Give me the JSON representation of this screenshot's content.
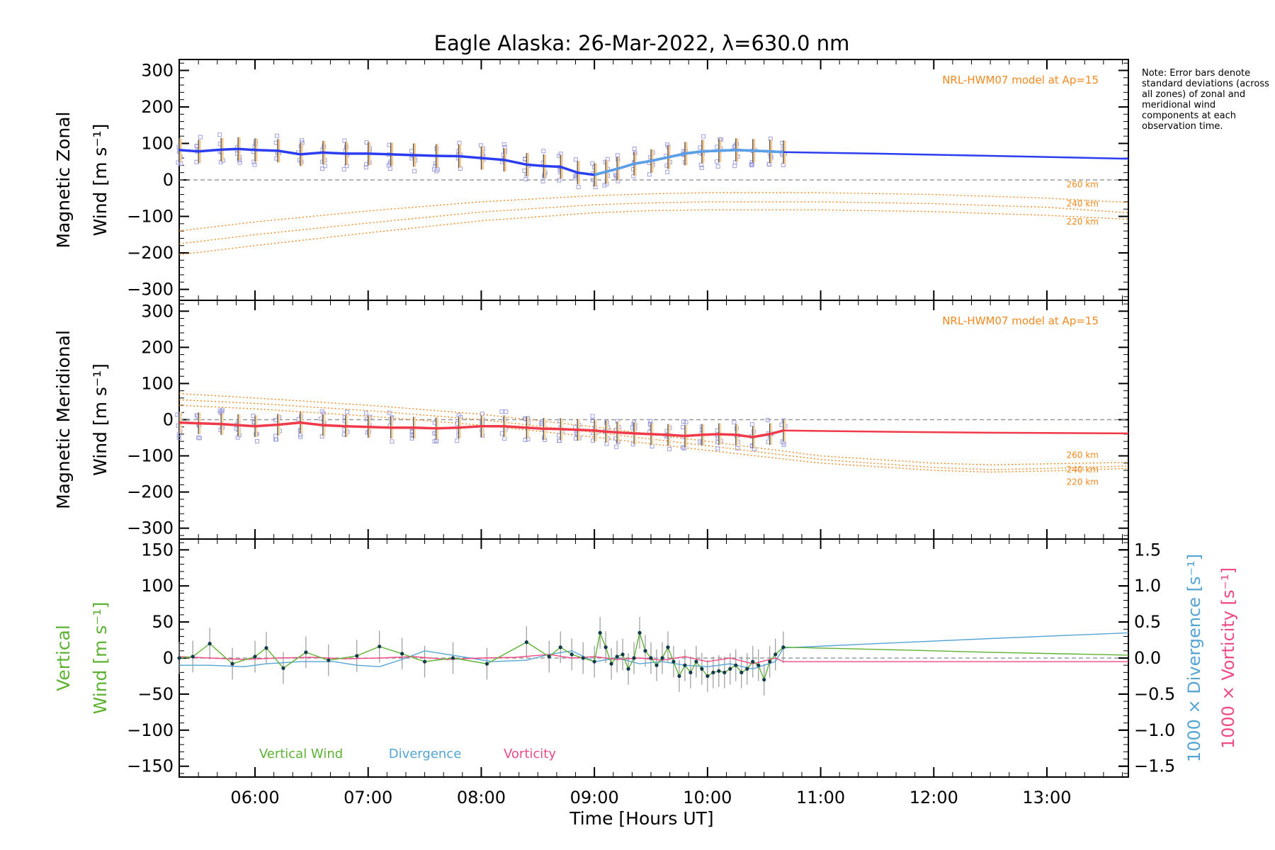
{
  "chart_data": {
    "title": "Eagle Alaska: 26-Mar-2022, λ=630.0 nm",
    "note": "Note: Error bars denote standard deviations (across all zones) of zonal and meridional wind components at each observation time.",
    "xlabel": "Time [Hours UT]",
    "x_ticks": [
      "06:00",
      "07:00",
      "08:00",
      "09:00",
      "10:00",
      "11:00",
      "12:00",
      "13:00"
    ],
    "xlim_hours": [
      5.33,
      13.72
    ],
    "colors": {
      "zonal": "#2b3df0",
      "zonal_recent": "#5aa0e6",
      "meridional": "#f03a4a",
      "model": "#f5881f",
      "vertical": "#5db233",
      "divergence": "#55a4d4",
      "vorticity": "#ef4a86",
      "zero_line": "#888888",
      "error_bar": "#555555"
    },
    "panels": [
      {
        "id": "zonal",
        "ylabel_line1": "Magnetic Zonal",
        "ylabel_line2": "Wind [m s⁻¹]",
        "ylim": [
          -330,
          330
        ],
        "y_ticks": [
          300,
          200,
          100,
          0,
          -100,
          -200,
          -300
        ],
        "model_label": "NRL-HWM07 model at Ap=15",
        "model_heights": [
          "260 km",
          "240 km",
          "220 km"
        ],
        "model_curves": [
          {
            "x": [
              5.33,
              6,
              7,
              8,
              9,
              9.5,
              10,
              11,
              12,
              13,
              13.72
            ],
            "y": [
              -140,
              -115,
              -85,
              -60,
              -43,
              -38,
              -35,
              -35,
              -40,
              -50,
              -62
            ]
          },
          {
            "x": [
              5.33,
              6,
              7,
              8,
              9,
              9.5,
              10,
              11,
              12,
              13,
              13.72
            ],
            "y": [
              -175,
              -150,
              -118,
              -88,
              -68,
              -63,
              -60,
              -60,
              -65,
              -75,
              -90
            ]
          },
          {
            "x": [
              5.33,
              6,
              7,
              8,
              9,
              9.5,
              10,
              11,
              12,
              13,
              13.72
            ],
            "y": [
              -205,
              -180,
              -145,
              -112,
              -90,
              -84,
              -82,
              -82,
              -87,
              -97,
              -108
            ]
          }
        ],
        "series": {
          "x": [
            5.33,
            5.5,
            5.7,
            5.85,
            6,
            6.2,
            6.4,
            6.6,
            6.8,
            7,
            7.2,
            7.4,
            7.6,
            7.8,
            8.0,
            8.2,
            8.4,
            8.55,
            8.7,
            8.85,
            9.0,
            9.1,
            9.2,
            9.35,
            9.5,
            9.65,
            9.8,
            9.95,
            10.1,
            10.25,
            10.4,
            10.55,
            10.67
          ],
          "y": [
            82,
            78,
            83,
            85,
            82,
            80,
            70,
            75,
            72,
            72,
            70,
            68,
            66,
            65,
            60,
            55,
            42,
            38,
            36,
            20,
            14,
            22,
            30,
            44,
            52,
            62,
            72,
            78,
            80,
            82,
            80,
            78,
            76
          ]
        },
        "extension": {
          "x": [
            10.67,
            11.5,
            12.5,
            13.72
          ],
          "y": [
            76,
            72,
            66,
            58
          ]
        },
        "errorbar_sd": 32
      },
      {
        "id": "meridional",
        "ylabel_line1": "Magnetic Meridional",
        "ylabel_line2": "Wind [m s⁻¹]",
        "ylim": [
          -330,
          330
        ],
        "y_ticks": [
          300,
          200,
          100,
          0,
          -100,
          -200,
          -300
        ],
        "model_label": "NRL-HWM07 model at Ap=15",
        "model_heights": [
          "260 km",
          "240 km",
          "220 km"
        ],
        "model_curves": [
          {
            "x": [
              5.33,
              6,
              7,
              8,
              9,
              10,
              11,
              12,
              12.5,
              13,
              13.72
            ],
            "y": [
              72,
              60,
              40,
              15,
              -20,
              -60,
              -100,
              -120,
              -125,
              -122,
              -118
            ]
          },
          {
            "x": [
              5.33,
              6,
              7,
              8,
              9,
              10,
              11,
              12,
              12.5,
              13,
              13.72
            ],
            "y": [
              55,
              45,
              25,
              0,
              -35,
              -72,
              -110,
              -132,
              -138,
              -135,
              -128
            ]
          },
          {
            "x": [
              5.33,
              6,
              7,
              8,
              9,
              10,
              11,
              12,
              12.5,
              13,
              13.72
            ],
            "y": [
              40,
              30,
              10,
              -15,
              -48,
              -85,
              -120,
              -140,
              -145,
              -142,
              -135
            ]
          }
        ],
        "series": {
          "x": [
            5.33,
            5.5,
            5.7,
            5.85,
            6,
            6.2,
            6.4,
            6.6,
            6.8,
            7,
            7.2,
            7.4,
            7.6,
            7.8,
            8.0,
            8.2,
            8.4,
            8.55,
            8.7,
            8.85,
            9.0,
            9.1,
            9.2,
            9.35,
            9.5,
            9.65,
            9.8,
            9.95,
            10.1,
            10.25,
            10.4,
            10.55,
            10.67
          ],
          "y": [
            -8,
            -10,
            -12,
            -15,
            -18,
            -14,
            -8,
            -15,
            -18,
            -20,
            -22,
            -22,
            -24,
            -22,
            -18,
            -18,
            -22,
            -25,
            -26,
            -28,
            -30,
            -33,
            -35,
            -38,
            -40,
            -42,
            -45,
            -42,
            -40,
            -42,
            -48,
            -40,
            -30
          ]
        },
        "extension": {
          "x": [
            10.67,
            11.5,
            12.5,
            13.72
          ],
          "y": [
            -30,
            -33,
            -36,
            -38
          ]
        },
        "errorbar_sd": 30
      },
      {
        "id": "vertical",
        "ylabel_line1": "Vertical",
        "ylabel_line2": "Wind [m s⁻¹]",
        "ylim": [
          -165,
          165
        ],
        "y_ticks": [
          150,
          100,
          50,
          0,
          -50,
          -100,
          -150
        ],
        "y2_ticks": [
          1.5,
          1.0,
          0.5,
          0.0,
          -0.5,
          -1.0,
          -1.5
        ],
        "y2_label_divergence": "1000 × Divergence [s⁻¹]",
        "y2_label_vorticity": "1000 × Vorticity [s⁻¹]",
        "legend": [
          "Vertical Wind",
          "Divergence",
          "Vorticity"
        ],
        "vertical_wind": {
          "x": [
            5.33,
            5.45,
            5.6,
            5.8,
            6.0,
            6.1,
            6.25,
            6.45,
            6.65,
            6.9,
            7.1,
            7.3,
            7.5,
            7.75,
            8.05,
            8.4,
            8.6,
            8.7,
            8.8,
            8.9,
            9.0,
            9.05,
            9.1,
            9.15,
            9.2,
            9.25,
            9.3,
            9.35,
            9.4,
            9.45,
            9.5,
            9.55,
            9.6,
            9.65,
            9.7,
            9.75,
            9.8,
            9.85,
            9.9,
            9.95,
            10.0,
            10.05,
            10.1,
            10.15,
            10.2,
            10.25,
            10.3,
            10.35,
            10.4,
            10.45,
            10.5,
            10.55,
            10.6,
            10.67
          ],
          "y": [
            0,
            2,
            20,
            -8,
            2,
            14,
            -14,
            8,
            -3,
            3,
            16,
            6,
            -5,
            0,
            -8,
            22,
            2,
            15,
            5,
            0,
            -5,
            35,
            15,
            -8,
            2,
            5,
            -15,
            0,
            35,
            10,
            0,
            -10,
            0,
            15,
            -5,
            -25,
            -10,
            -20,
            -5,
            -15,
            -25,
            -20,
            -18,
            -20,
            -15,
            -10,
            -20,
            -15,
            -5,
            -10,
            -30,
            -5,
            5,
            15
          ]
        },
        "vertical_extension": {
          "x": [
            10.67,
            11.5,
            12.5,
            13.72
          ],
          "y": [
            15,
            12,
            8,
            4
          ]
        },
        "divergence": {
          "x": [
            5.33,
            5.6,
            5.9,
            6.1,
            6.4,
            6.7,
            6.9,
            7.1,
            7.3,
            7.5,
            7.7,
            7.9,
            8.1,
            8.4,
            8.6,
            8.8,
            9.0,
            9.2,
            9.4,
            9.6,
            9.8,
            10.0,
            10.2,
            10.4,
            10.6,
            10.67
          ],
          "y": [
            -0.1,
            -0.1,
            -0.12,
            -0.08,
            -0.05,
            -0.05,
            -0.1,
            -0.12,
            -0.02,
            0.1,
            0.05,
            0.0,
            -0.05,
            -0.03,
            0.05,
            0.1,
            -0.05,
            0.0,
            -0.08,
            -0.05,
            -0.1,
            -0.12,
            -0.08,
            -0.15,
            -0.05,
            0.14
          ]
        },
        "divergence_extension": {
          "x": [
            10.67,
            11.5,
            12.5,
            13.72
          ],
          "y": [
            0.14,
            0.2,
            0.27,
            0.35
          ]
        },
        "vorticity": {
          "x": [
            5.33,
            5.6,
            5.9,
            6.2,
            6.5,
            6.8,
            7.1,
            7.4,
            7.7,
            8.0,
            8.3,
            8.6,
            8.8,
            9.0,
            9.2,
            9.4,
            9.6,
            9.8,
            10.0,
            10.2,
            10.4,
            10.6,
            10.67
          ],
          "y": [
            0.02,
            0.0,
            -0.02,
            0.0,
            0.01,
            -0.01,
            0.0,
            0.02,
            -0.02,
            0.0,
            0.01,
            0.05,
            0.0,
            0.02,
            -0.02,
            0.0,
            -0.03,
            0.02,
            -0.05,
            0.0,
            -0.08,
            0.0,
            -0.05
          ],
          "extension": {
            "x": [
              10.67,
              11.5,
              12.5,
              13.72
            ],
            "y": [
              -0.05,
              -0.05,
              -0.05,
              -0.05
            ]
          }
        }
      }
    ]
  }
}
